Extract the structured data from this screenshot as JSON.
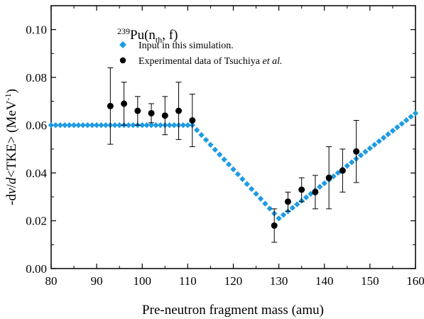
{
  "chart_data": {
    "type": "scatter",
    "xlabel": "Pre-neutron fragment mass (amu)",
    "ylabel": {
      "prefix": "-d",
      "nu": "ν",
      "slash": "/",
      "d": "d",
      "rest": "<TKE> (MeV",
      "sup": "-1",
      "close": ")"
    },
    "xlim": [
      80,
      160
    ],
    "ylim": [
      0,
      0.11
    ],
    "xticks": [
      80,
      90,
      100,
      110,
      120,
      130,
      140,
      150,
      160
    ],
    "yticks": [
      0.0,
      0.02,
      0.04,
      0.06,
      0.08,
      0.1
    ],
    "xtick_labels": [
      "80",
      "90",
      "100",
      "110",
      "120",
      "130",
      "140",
      "150",
      "160"
    ],
    "ytick_labels": [
      "0.00",
      "0.02",
      "0.04",
      "0.06",
      "0.08",
      "0.10"
    ],
    "annotation": {
      "sup": "239",
      "main": "Pu(n",
      "sub": "th",
      "end": ", f)"
    },
    "legend": {
      "input": "Input in this simulation.",
      "experimental_main": "Experimental data of Tsuchiya ",
      "experimental_italic": "et al."
    },
    "grid": false,
    "colors": {
      "input": "#1f9be4",
      "experimental": "#000000"
    },
    "input_series": {
      "marker": "diamond",
      "x_start": 80,
      "x_end": 160,
      "x_step": 1,
      "segments": [
        {
          "x": [
            80,
            111
          ],
          "y": [
            0.06,
            0.06
          ]
        },
        {
          "x": [
            111,
            130
          ],
          "y": [
            0.06,
            0.021
          ]
        },
        {
          "x": [
            130,
            160
          ],
          "y": [
            0.021,
            0.065
          ]
        }
      ]
    },
    "experimental_series": {
      "marker": "circle",
      "points": [
        {
          "x": 93,
          "y": 0.068,
          "yerr": 0.016
        },
        {
          "x": 96,
          "y": 0.069,
          "yerr": 0.009
        },
        {
          "x": 99,
          "y": 0.066,
          "yerr": 0.006
        },
        {
          "x": 102,
          "y": 0.065,
          "yerr": 0.004
        },
        {
          "x": 105,
          "y": 0.064,
          "yerr": 0.008
        },
        {
          "x": 108,
          "y": 0.066,
          "yerr": 0.012
        },
        {
          "x": 111,
          "y": 0.062,
          "yerr": 0.011
        },
        {
          "x": 129,
          "y": 0.018,
          "yerr": 0.007
        },
        {
          "x": 132,
          "y": 0.028,
          "yerr": 0.004
        },
        {
          "x": 135,
          "y": 0.033,
          "yerr": 0.005
        },
        {
          "x": 138,
          "y": 0.032,
          "yerr": 0.007
        },
        {
          "x": 141,
          "y": 0.038,
          "yerr": 0.013
        },
        {
          "x": 144,
          "y": 0.041,
          "yerr": 0.009
        },
        {
          "x": 147,
          "y": 0.049,
          "yerr": 0.013
        }
      ]
    }
  }
}
